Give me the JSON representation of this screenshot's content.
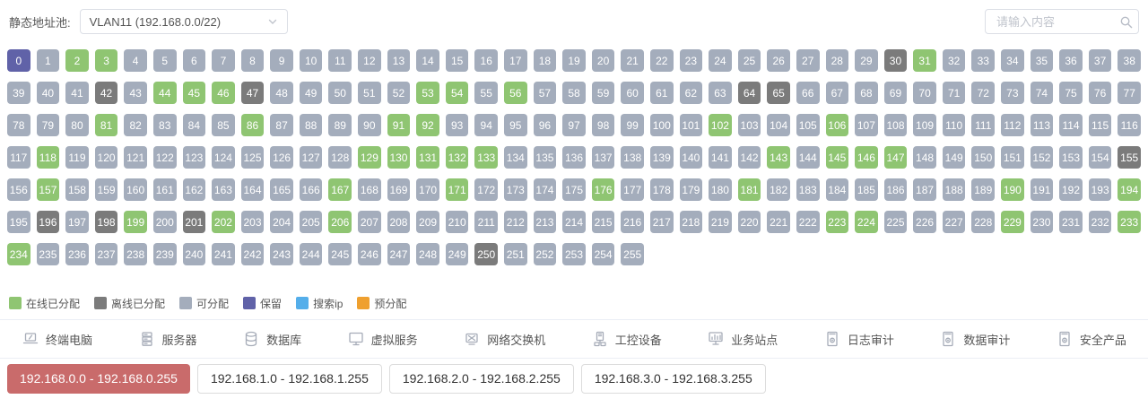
{
  "header": {
    "pool_label": "静态地址池:",
    "pool_value": "VLAN11 (192.168.0.0/22)",
    "search_placeholder": "请输入内容"
  },
  "status_colors": {
    "online": "#8fc572",
    "offline": "#7b7b7b",
    "available": "#a4adbc",
    "reserved": "#6062a8",
    "search": "#54aeea",
    "prealloc": "#efa02f"
  },
  "grid": {
    "total": 256,
    "reserved": [
      0
    ],
    "online": [
      2,
      3,
      31,
      44,
      45,
      46,
      53,
      54,
      56,
      81,
      86,
      91,
      92,
      102,
      106,
      118,
      129,
      130,
      131,
      132,
      133,
      143,
      145,
      146,
      147,
      157,
      167,
      171,
      176,
      181,
      190,
      194,
      199,
      202,
      206,
      223,
      224,
      229,
      233,
      234
    ],
    "offline": [
      30,
      42,
      47,
      64,
      65,
      155,
      196,
      198,
      201,
      250
    ]
  },
  "legend": [
    {
      "label": "在线已分配",
      "status": "online"
    },
    {
      "label": "离线已分配",
      "status": "offline"
    },
    {
      "label": "可分配",
      "status": "available"
    },
    {
      "label": "保留",
      "status": "reserved"
    },
    {
      "label": "搜索ip",
      "status": "search"
    },
    {
      "label": "预分配",
      "status": "prealloc"
    }
  ],
  "device_types": [
    {
      "label": "终端电脑",
      "icon": "laptop-icon"
    },
    {
      "label": "服务器",
      "icon": "server-icon"
    },
    {
      "label": "数据库",
      "icon": "database-icon"
    },
    {
      "label": "虚拟服务",
      "icon": "virtual-service-icon"
    },
    {
      "label": "网络交换机",
      "icon": "network-switch-icon"
    },
    {
      "label": "工控设备",
      "icon": "industrial-device-icon"
    },
    {
      "label": "业务站点",
      "icon": "business-site-icon"
    },
    {
      "label": "日志审计",
      "icon": "log-audit-icon"
    },
    {
      "label": "数据审计",
      "icon": "data-audit-icon"
    },
    {
      "label": "安全产品",
      "icon": "security-product-icon"
    }
  ],
  "subnet_tabs": [
    {
      "label": "192.168.0.0 - 192.168.0.255",
      "active": true
    },
    {
      "label": "192.168.1.0 - 192.168.1.255",
      "active": false
    },
    {
      "label": "192.168.2.0 - 192.168.2.255",
      "active": false
    },
    {
      "label": "192.168.3.0 - 192.168.3.255",
      "active": false
    }
  ],
  "tab_active_color": "#c96b6b"
}
